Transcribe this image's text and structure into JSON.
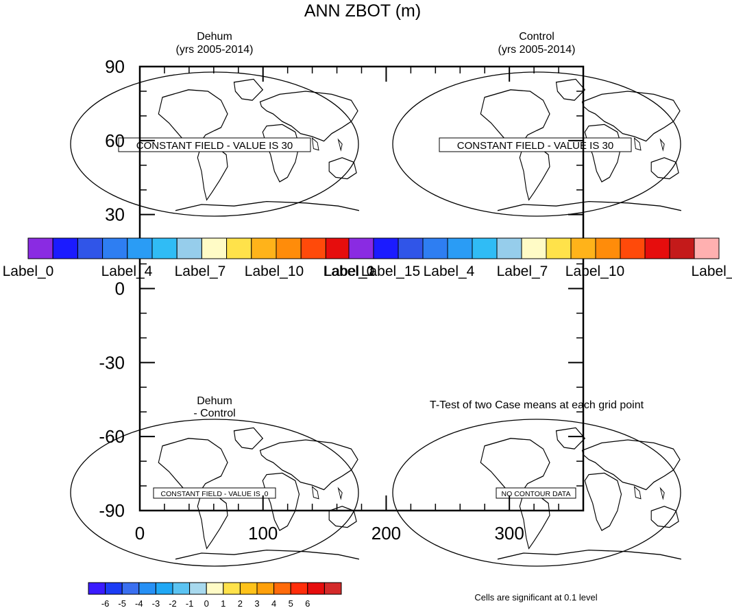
{
  "chart_data": {
    "type": "map-panels",
    "title": "ANN ZBOT (m)",
    "panels": [
      {
        "id": "dehum",
        "title_lines": [
          "Dehum",
          "(yrs 2005-2014)"
        ],
        "label": "CONSTANT FIELD - VALUE IS 30"
      },
      {
        "id": "control",
        "title_lines": [
          "Control",
          "(yrs 2005-2014)"
        ],
        "label": "CONSTANT FIELD - VALUE IS 30"
      },
      {
        "id": "diff",
        "title_lines": [
          "Dehum",
          "- Control"
        ],
        "label": "CONSTANT FIELD - VALUE IS .0"
      },
      {
        "id": "ttest",
        "title_lines": [
          "T-Test of two Case means at each grid point"
        ],
        "label": "NO CONTOUR DATA"
      }
    ],
    "overlay_axes": {
      "x_ticks": [
        0,
        100,
        200,
        300
      ],
      "x_range": [
        0,
        360
      ],
      "y_ticks": [
        90,
        60,
        30,
        0,
        -30,
        -60,
        -90
      ],
      "y_range": [
        -90,
        90
      ]
    },
    "colorbar_top_left": {
      "colors": [
        "#8a2be2",
        "#1b1bff",
        "#3055e8",
        "#2e7ef2",
        "#2a9cf5",
        "#30bcf5",
        "#96cdeb",
        "#fffbc6",
        "#ffe24a",
        "#ffb31a",
        "#ff8c0a",
        "#ff4a0a",
        "#e60d0d"
      ],
      "labels": [
        "Label_0",
        "Label_4",
        "Label_7",
        "Label_10",
        "Label_1"
      ]
    },
    "colorbar_top_right": {
      "colors": [
        "#8a2be2",
        "#1b1bff",
        "#3055e8",
        "#2e7ef2",
        "#2a9cf5",
        "#30bcf5",
        "#96cdeb",
        "#fffbc6",
        "#ffe24a",
        "#ffb31a",
        "#ff8c0a",
        "#ff4a0a",
        "#e60d0d",
        "#c41a1a",
        "#ffb0b0"
      ],
      "labels": [
        "Label_0",
        "Label_15",
        "Label_4",
        "Label_7",
        "Label_10",
        "Label_"
      ]
    },
    "colorbar_bottom": {
      "colors": [
        "#3a1bff",
        "#1b3cf5",
        "#3a6ff0",
        "#2690f5",
        "#20a8f5",
        "#5bc3f2",
        "#a8d9ee",
        "#fffbc6",
        "#ffe24a",
        "#ffc21a",
        "#ffa00a",
        "#ff6a0a",
        "#ff2d0a",
        "#e60d0d",
        "#d42a2a"
      ],
      "tick_labels": [
        "-6",
        "-5",
        "-4",
        "-3",
        "-2",
        "-1",
        "0",
        "1",
        "2",
        "3",
        "4",
        "5",
        "6"
      ]
    },
    "footnote": "Cells are significant at 0.1 level"
  }
}
